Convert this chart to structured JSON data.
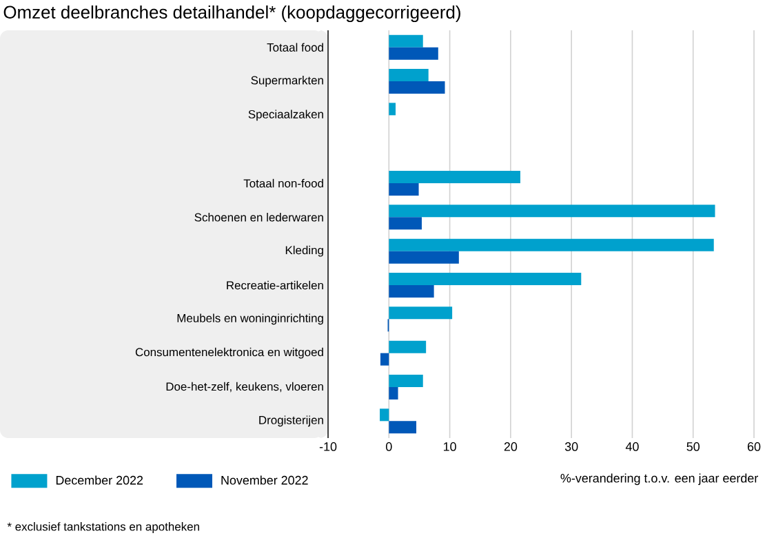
{
  "chart_data": {
    "type": "bar",
    "orientation": "horizontal",
    "title": "Omzet deelbranches detailhandel* (koopdaggecorrigeerd)",
    "categories": [
      "Totaal food",
      "Supermarkten",
      "Speciaalzaken",
      null,
      "Totaal non-food",
      "Schoenen en lederwaren",
      "Kleding",
      "Recreatie-artikelen",
      "Meubels en woninginrichting",
      "Consumentenelektronica en witgoed",
      "Doe-het-zelf, keukens, vloeren",
      "Drogisterijen"
    ],
    "series": [
      {
        "name": "December 2022",
        "color": "#00a1cd",
        "values": [
          5.6,
          6.5,
          1.1,
          null,
          21.6,
          53.6,
          53.4,
          31.6,
          10.4,
          6.1,
          5.6,
          -1.5
        ]
      },
      {
        "name": "November 2022",
        "color": "#0058b8",
        "values": [
          8.1,
          9.2,
          0,
          null,
          4.9,
          5.4,
          11.5,
          7.4,
          -0.2,
          -1.4,
          1.5,
          4.5
        ]
      }
    ],
    "xlabel": "%-verandering t.o.v. een jaar eerder",
    "xlim": [
      -10,
      60
    ],
    "xticks": [
      -10,
      0,
      10,
      20,
      30,
      40,
      50,
      60
    ],
    "grid": "x",
    "legend": "bottom left",
    "annotations": [
      "* exclusief tankstations en apotheken"
    ]
  }
}
